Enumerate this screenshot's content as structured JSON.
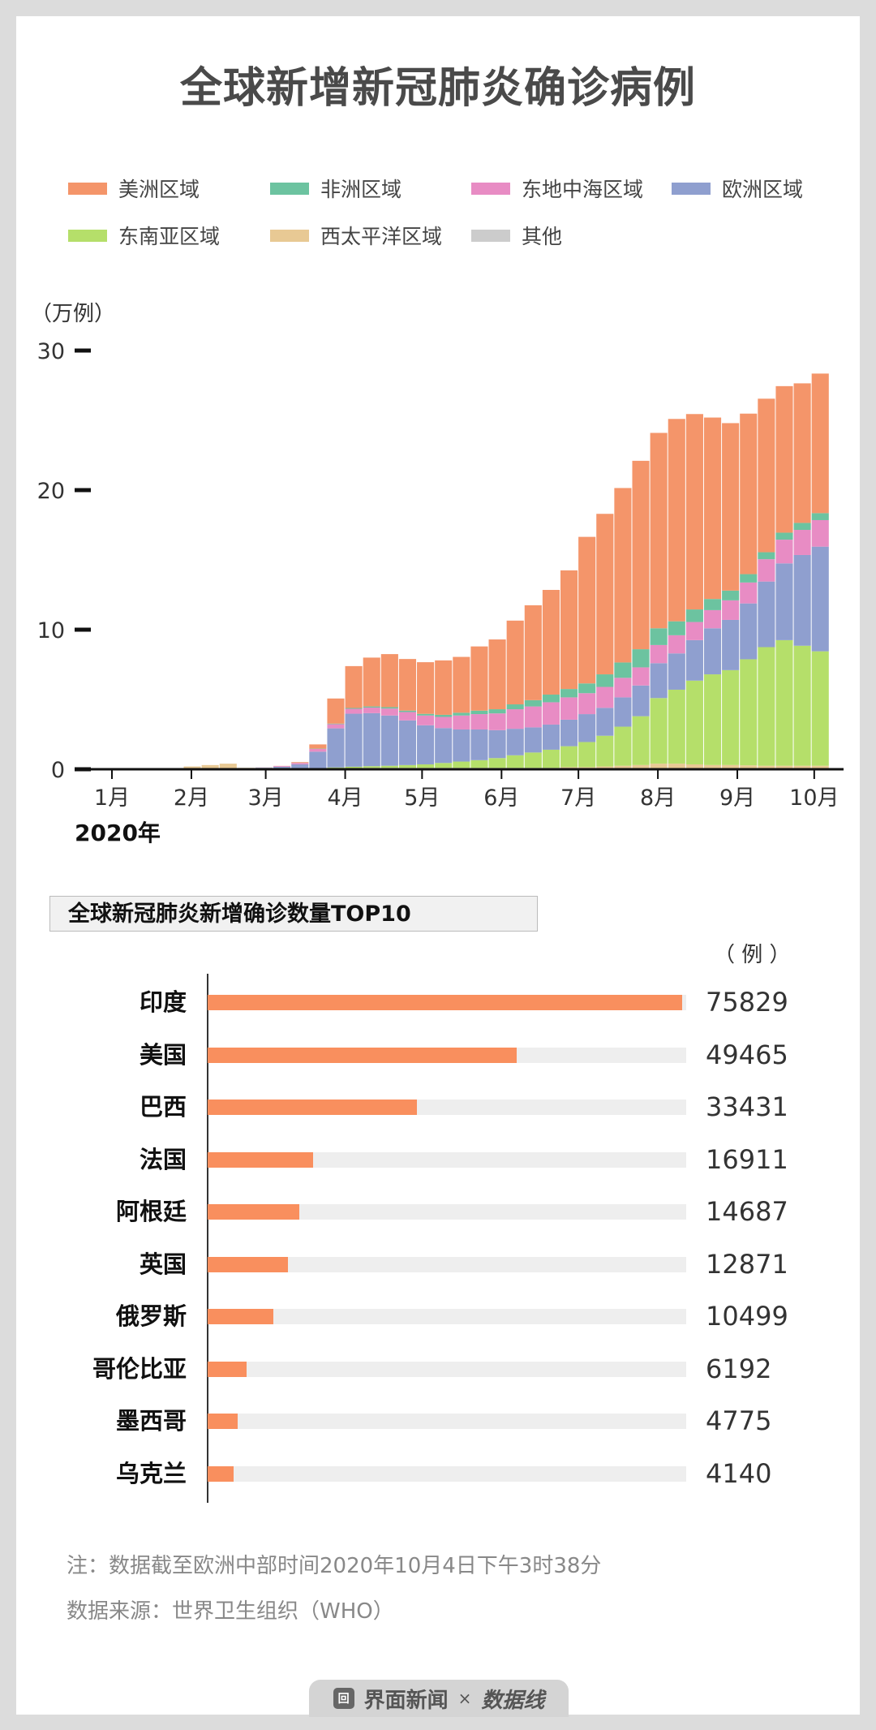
{
  "title": "全球新增新冠肺炎确诊病例",
  "chart_data": [
    {
      "type": "bar",
      "stacked": true,
      "title": "全球新增新冠肺炎确诊病例",
      "ylabel": "（万例）",
      "ylim": [
        0,
        32
      ],
      "yticks": [
        "0",
        "10",
        "20",
        "30"
      ],
      "ytick_values": [
        0,
        10,
        20,
        30
      ],
      "xlabel": "2020年",
      "xticks": [
        "1月",
        "2月",
        "3月",
        "4月",
        "5月",
        "6月",
        "7月",
        "8月",
        "9月",
        "10月"
      ],
      "xtick_dates": [
        "2020-01-01",
        "2020-02-01",
        "2020-03-01",
        "2020-04-01",
        "2020-05-01",
        "2020-06-01",
        "2020-07-01",
        "2020-08-01",
        "2020-09-01",
        "2020-10-01"
      ],
      "legend_position": "top",
      "x": [
        "2020-01-01",
        "2020-01-08",
        "2020-01-15",
        "2020-01-22",
        "2020-01-29",
        "2020-02-05",
        "2020-02-12",
        "2020-02-19",
        "2020-02-26",
        "2020-03-04",
        "2020-03-11",
        "2020-03-18",
        "2020-03-25",
        "2020-04-01",
        "2020-04-08",
        "2020-04-15",
        "2020-04-22",
        "2020-04-29",
        "2020-05-06",
        "2020-05-13",
        "2020-05-20",
        "2020-05-27",
        "2020-06-03",
        "2020-06-10",
        "2020-06-17",
        "2020-06-24",
        "2020-07-01",
        "2020-07-08",
        "2020-07-15",
        "2020-07-22",
        "2020-07-29",
        "2020-08-05",
        "2020-08-12",
        "2020-08-19",
        "2020-08-26",
        "2020-09-02",
        "2020-09-09",
        "2020-09-16",
        "2020-09-23",
        "2020-09-30"
      ],
      "series": [
        {
          "name": "西太平洋区域",
          "color": "#e8c994",
          "values": [
            0,
            0,
            0,
            0.01,
            0.2,
            0.3,
            0.4,
            0.1,
            0.1,
            0.08,
            0.05,
            0.05,
            0.08,
            0.08,
            0.1,
            0.1,
            0.1,
            0.1,
            0.1,
            0.1,
            0.1,
            0.1,
            0.1,
            0.1,
            0.1,
            0.15,
            0.15,
            0.2,
            0.25,
            0.3,
            0.4,
            0.4,
            0.35,
            0.3,
            0.3,
            0.28,
            0.25,
            0.25,
            0.25,
            0.25
          ]
        },
        {
          "name": "东南亚区域",
          "color": "#b5df6a",
          "values": [
            0,
            0,
            0,
            0,
            0,
            0,
            0,
            0,
            0,
            0,
            0,
            0.01,
            0.05,
            0.1,
            0.12,
            0.15,
            0.2,
            0.25,
            0.35,
            0.45,
            0.55,
            0.7,
            0.9,
            1.1,
            1.3,
            1.5,
            1.8,
            2.2,
            2.8,
            3.5,
            4.7,
            5.3,
            6.0,
            6.5,
            6.8,
            7.6,
            8.5,
            9.0,
            8.6,
            8.2
          ]
        },
        {
          "name": "欧洲区域",
          "color": "#8f9fcf",
          "values": [
            0,
            0,
            0,
            0,
            0,
            0,
            0,
            0,
            0.02,
            0.1,
            0.3,
            1.2,
            2.8,
            3.8,
            3.8,
            3.6,
            3.2,
            2.8,
            2.5,
            2.3,
            2.2,
            2.0,
            1.9,
            1.8,
            1.8,
            1.9,
            2.0,
            2.0,
            2.1,
            2.2,
            2.5,
            2.6,
            2.9,
            3.3,
            3.6,
            4.0,
            4.7,
            5.5,
            6.5,
            7.5
          ]
        },
        {
          "name": "东地中海区域",
          "color": "#e88cc4",
          "values": [
            0,
            0,
            0,
            0,
            0,
            0,
            0,
            0,
            0.01,
            0.05,
            0.1,
            0.2,
            0.3,
            0.35,
            0.4,
            0.5,
            0.6,
            0.7,
            0.8,
            1.0,
            1.1,
            1.2,
            1.4,
            1.5,
            1.6,
            1.6,
            1.5,
            1.5,
            1.4,
            1.3,
            1.3,
            1.3,
            1.3,
            1.3,
            1.4,
            1.5,
            1.6,
            1.7,
            1.8,
            1.9
          ]
        },
        {
          "name": "非洲区域",
          "color": "#6cc3a0",
          "values": [
            0,
            0,
            0,
            0,
            0,
            0,
            0,
            0,
            0,
            0,
            0.01,
            0.02,
            0.04,
            0.06,
            0.08,
            0.1,
            0.1,
            0.12,
            0.15,
            0.2,
            0.25,
            0.3,
            0.35,
            0.45,
            0.55,
            0.6,
            0.7,
            0.9,
            1.1,
            1.3,
            1.2,
            1.0,
            0.9,
            0.8,
            0.7,
            0.6,
            0.5,
            0.5,
            0.5,
            0.5
          ]
        },
        {
          "name": "美洲区域",
          "color": "#f4956a",
          "values": [
            0,
            0,
            0,
            0,
            0,
            0,
            0,
            0,
            0,
            0.01,
            0.05,
            0.3,
            1.8,
            3.0,
            3.5,
            3.8,
            3.7,
            3.7,
            3.9,
            4.0,
            4.6,
            5.0,
            6.0,
            6.8,
            7.5,
            8.5,
            10.5,
            11.5,
            12.5,
            13.5,
            14.0,
            14.5,
            14.0,
            13.0,
            12.0,
            11.5,
            11.0,
            10.5,
            10.0,
            10.0
          ]
        },
        {
          "name": "其他",
          "color": "#cccccc",
          "values": [
            0,
            0,
            0,
            0,
            0,
            0,
            0,
            0,
            0,
            0,
            0,
            0,
            0,
            0,
            0,
            0,
            0,
            0,
            0,
            0,
            0,
            0,
            0,
            0,
            0,
            0,
            0,
            0,
            0,
            0,
            0,
            0,
            0,
            0,
            0,
            0,
            0,
            0,
            0,
            0
          ]
        }
      ]
    },
    {
      "type": "bar",
      "orientation": "horizontal",
      "title": "全球新冠肺炎新增确诊数量TOP10",
      "unit": "（ 例 ）",
      "color": "#f98f5e",
      "track_color": "#eeeeee",
      "categories": [
        "印度",
        "美国",
        "巴西",
        "法国",
        "阿根廷",
        "英国",
        "俄罗斯",
        "哥伦比亚",
        "墨西哥",
        "乌克兰"
      ],
      "values": [
        75829,
        49465,
        33431,
        16911,
        14687,
        12871,
        10499,
        6192,
        4775,
        4140
      ],
      "labels": [
        "75829",
        "49465",
        "33431",
        "16911",
        "14687",
        "12871",
        "10499",
        "6192",
        "4775",
        "4140"
      ],
      "xlim": [
        0,
        76500
      ]
    }
  ],
  "notes": {
    "note": "注：数据截至欧洲中部时间2020年10月4日下午3时38分",
    "source": "数据来源：世界卫生组织（WHO）"
  },
  "footer": {
    "logo_icon": "jiemian-logo-icon",
    "brand": "界面新闻",
    "times": "×",
    "partner": "数据线"
  }
}
